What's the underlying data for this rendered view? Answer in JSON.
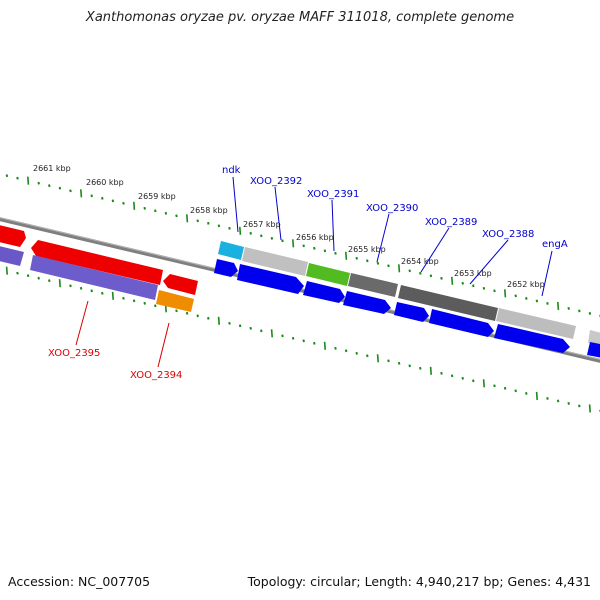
{
  "title": "Xanthomonas oryzae pv. oryzae MAFF 311018, complete genome",
  "footer": {
    "accession": "Accession: NC_007705",
    "summary": "Topology: circular; Length: 4,940,217 bp; Genes: 4,431"
  },
  "colors": {
    "tick": "#1a8a1a",
    "backbone": "#888888",
    "label_forward": "#0000cc",
    "label_reverse": "#dd0000"
  },
  "kbp_labels": [
    "2661 kbp",
    "2660 kbp",
    "2659 kbp",
    "2658 kbp",
    "2657 kbp",
    "2656 kbp",
    "2655 kbp",
    "2654 kbp",
    "2653 kbp",
    "2652 kbp"
  ],
  "gene_labels_top": [
    "ndk",
    "XOO_2392",
    "XOO_2391",
    "XOO_2390",
    "XOO_2389",
    "XOO_2388",
    "engA"
  ],
  "gene_labels_bottom": [
    "XOO_2395",
    "XOO_2394"
  ]
}
